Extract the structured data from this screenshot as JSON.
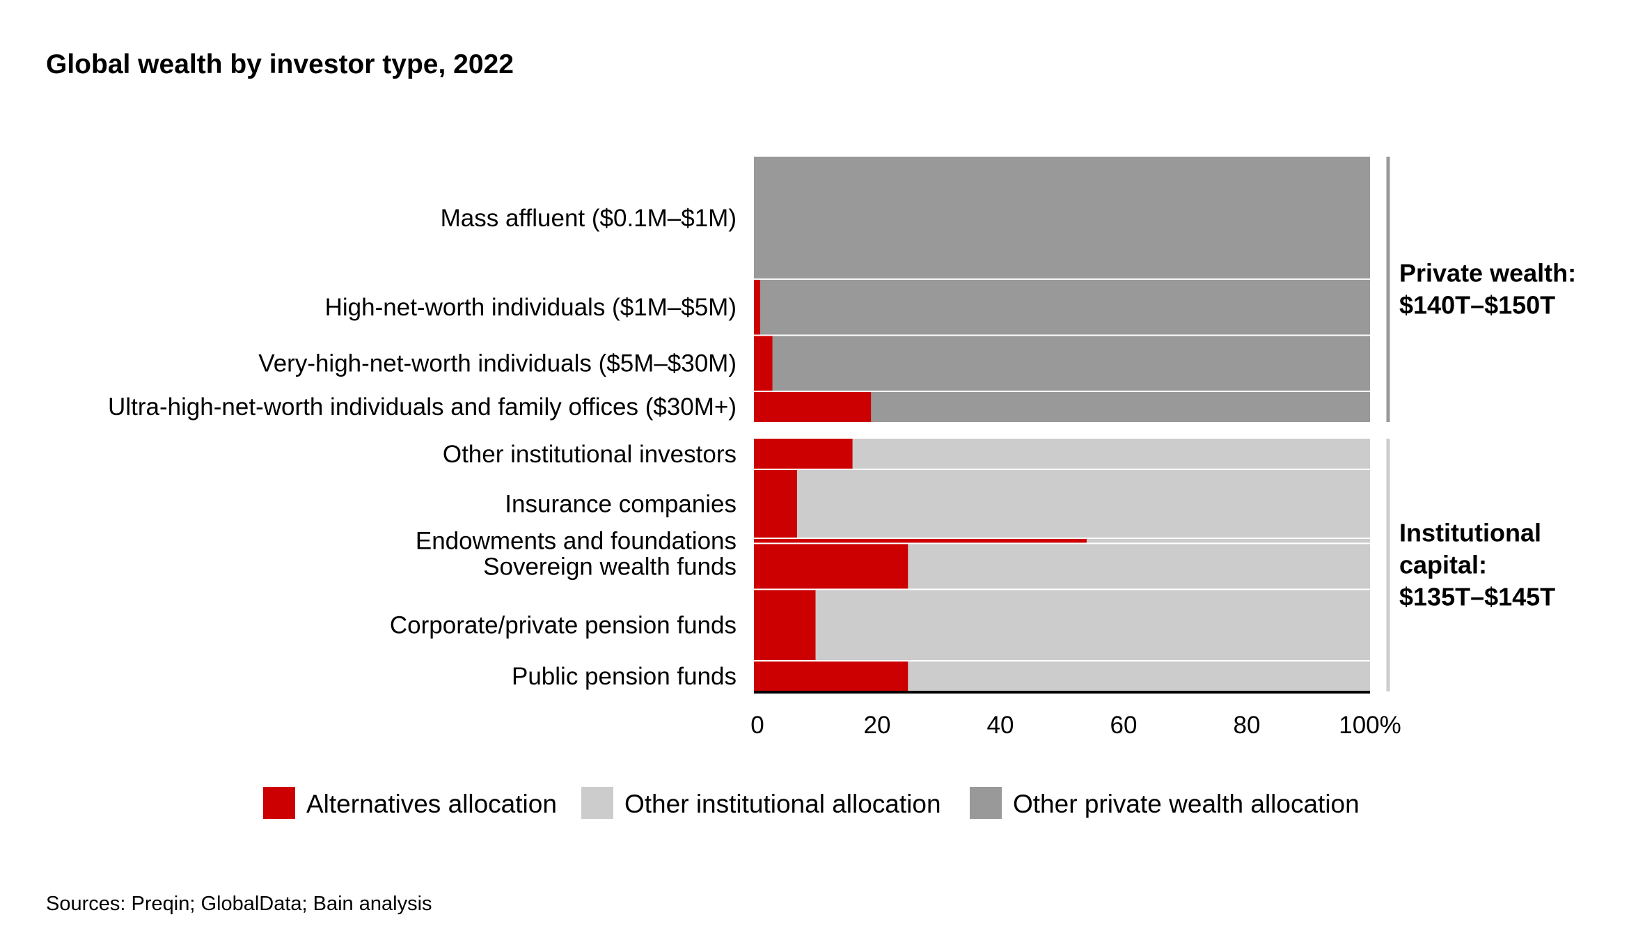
{
  "chart_data": {
    "type": "bar",
    "orientation": "horizontal",
    "stacked": true,
    "title": "Global wealth by investor type, 2022",
    "categories": [
      "Mass affluent ($0.1M–$1M)",
      "High-net-worth individuals ($1M–$5M)",
      "Very-high-net-worth individuals ($5M–$30M)",
      "Ultra-high-net-worth individuals and family offices ($30M+)",
      "Other institutional investors",
      "Insurance companies",
      "Endowments and foundations",
      "Sovereign wealth funds",
      "Corporate/private pension funds",
      "Public pension funds"
    ],
    "relative_width": [
      48,
      22,
      22,
      12,
      12,
      27,
      2,
      18,
      28,
      12
    ],
    "group_of_category": [
      "private",
      "private",
      "private",
      "private",
      "institutional",
      "institutional",
      "institutional",
      "institutional",
      "institutional",
      "institutional"
    ],
    "series": [
      {
        "name": "Alternatives allocation",
        "color": "#cc0000",
        "values": [
          0,
          1,
          3,
          19,
          16,
          7,
          54,
          25,
          10,
          25
        ]
      }
    ],
    "remainder_series": {
      "private": {
        "name": "Other private wealth allocation",
        "color": "#999999"
      },
      "institutional": {
        "name": "Other institutional allocation",
        "color": "#cccccc"
      }
    },
    "groups": [
      {
        "id": "private",
        "label_lines": [
          "Private wealth:",
          "$140T–$150T"
        ],
        "bracket_color": "#999999"
      },
      {
        "id": "institutional",
        "label_lines": [
          "Institutional",
          "capital:",
          "$135T–$145T"
        ],
        "bracket_color": "#cccccc"
      }
    ],
    "xlim": [
      0,
      100
    ],
    "xticks": [
      "0",
      "20",
      "40",
      "60",
      "80",
      "100%"
    ],
    "xtick_values": [
      0,
      20,
      40,
      60,
      80,
      100
    ],
    "legend": {
      "position": "bottom",
      "items": [
        {
          "label": "Alternatives allocation",
          "color": "#cc0000"
        },
        {
          "label": "Other institutional allocation",
          "color": "#cccccc"
        },
        {
          "label": "Other private wealth allocation",
          "color": "#999999"
        }
      ]
    }
  },
  "source": "Sources: Preqin; GlobalData; Bain analysis"
}
